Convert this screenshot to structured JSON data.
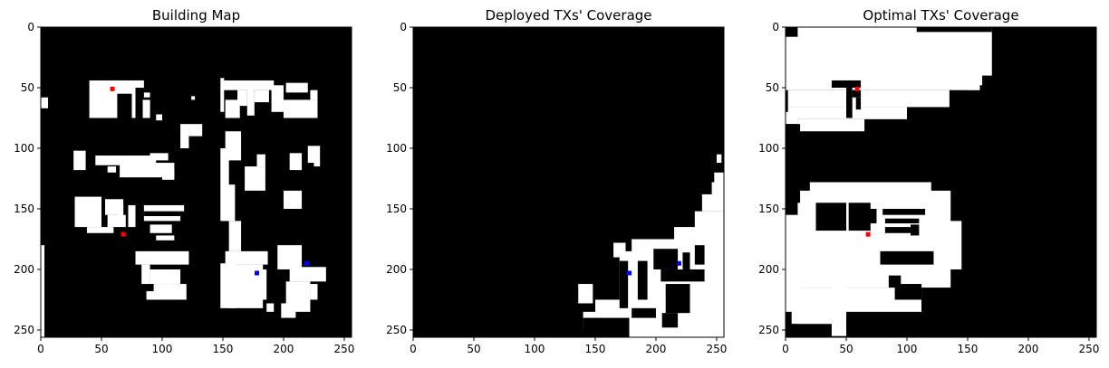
{
  "chart_data": [
    {
      "type": "heatmap",
      "title": "Building Map",
      "xlim": [
        0,
        256
      ],
      "ylim": [
        256,
        0
      ],
      "xticks": [
        0,
        50,
        100,
        150,
        200,
        250
      ],
      "yticks": [
        0,
        50,
        100,
        150,
        200,
        250
      ],
      "background_color": "#000000",
      "foreground_color": "#ffffff",
      "white_regions": [
        [
          40,
          44,
          63,
          75
        ],
        [
          60,
          44,
          75,
          55
        ],
        [
          75,
          44,
          78,
          75
        ],
        [
          78,
          44,
          85,
          50
        ],
        [
          84,
          60,
          90,
          75
        ],
        [
          85,
          54,
          90,
          58
        ],
        [
          0,
          58,
          6,
          67
        ],
        [
          86,
          62,
          90,
          69
        ],
        [
          124,
          57,
          127,
          60
        ],
        [
          115,
          80,
          122,
          100
        ],
        [
          122,
          80,
          133,
          90
        ],
        [
          95,
          72,
          100,
          77
        ],
        [
          148,
          42,
          151,
          70
        ],
        [
          150,
          44,
          192,
          52
        ],
        [
          152,
          60,
          164,
          75
        ],
        [
          162,
          52,
          170,
          65
        ],
        [
          170,
          47,
          176,
          73
        ],
        [
          176,
          52,
          188,
          62
        ],
        [
          190,
          48,
          200,
          70
        ],
        [
          202,
          46,
          220,
          54
        ],
        [
          200,
          60,
          228,
          75
        ],
        [
          222,
          52,
          228,
          60
        ],
        [
          152,
          86,
          165,
          110
        ],
        [
          148,
          100,
          155,
          160
        ],
        [
          150,
          130,
          160,
          160
        ],
        [
          155,
          160,
          165,
          185
        ],
        [
          168,
          115,
          185,
          135
        ],
        [
          178,
          105,
          185,
          115
        ],
        [
          205,
          104,
          215,
          118
        ],
        [
          220,
          98,
          230,
          112
        ],
        [
          225,
          110,
          230,
          115
        ],
        [
          27,
          102,
          37,
          118
        ],
        [
          45,
          106,
          95,
          114
        ],
        [
          65,
          112,
          110,
          124
        ],
        [
          90,
          104,
          105,
          110
        ],
        [
          100,
          118,
          110,
          126
        ],
        [
          55,
          115,
          62,
          120
        ],
        [
          28,
          140,
          50,
          165
        ],
        [
          38,
          165,
          60,
          170
        ],
        [
          53,
          142,
          68,
          155
        ],
        [
          55,
          155,
          70,
          165
        ],
        [
          63,
          147,
          68,
          160
        ],
        [
          72,
          147,
          78,
          165
        ],
        [
          85,
          147,
          118,
          152
        ],
        [
          85,
          156,
          115,
          160
        ],
        [
          90,
          163,
          108,
          170
        ],
        [
          95,
          172,
          110,
          176
        ],
        [
          200,
          135,
          215,
          150
        ],
        [
          78,
          185,
          122,
          196
        ],
        [
          83,
          196,
          90,
          212
        ],
        [
          90,
          200,
          115,
          212
        ],
        [
          93,
          212,
          120,
          225
        ],
        [
          87,
          218,
          95,
          225
        ],
        [
          148,
          195,
          160,
          232
        ],
        [
          152,
          185,
          187,
          196
        ],
        [
          155,
          196,
          183,
          232
        ],
        [
          182,
          200,
          186,
          225
        ],
        [
          195,
          180,
          215,
          200
        ],
        [
          205,
          198,
          235,
          210
        ],
        [
          202,
          210,
          222,
          235
        ],
        [
          222,
          212,
          228,
          225
        ],
        [
          198,
          228,
          210,
          240
        ],
        [
          186,
          228,
          192,
          235
        ],
        [
          0,
          180,
          3,
          256
        ]
      ],
      "tx_markers": [
        {
          "x": 59,
          "y": 51,
          "color": "#ff0000"
        },
        {
          "x": 68,
          "y": 171,
          "color": "#ff0000"
        },
        {
          "x": 178,
          "y": 203,
          "color": "#0000ff"
        },
        {
          "x": 219,
          "y": 195,
          "color": "#0000ff"
        }
      ]
    },
    {
      "type": "heatmap",
      "title": "Deployed TXs' Coverage",
      "xlim": [
        0,
        256
      ],
      "ylim": [
        256,
        0
      ],
      "xticks": [
        0,
        50,
        100,
        150,
        200,
        250
      ],
      "yticks": [
        0,
        50,
        100,
        150,
        200,
        250
      ],
      "background_color": "#000000",
      "foreground_color": "#ffffff",
      "white_regions": [
        [
          232,
          152,
          256,
          256
        ],
        [
          238,
          138,
          256,
          152
        ],
        [
          246,
          128,
          256,
          140
        ],
        [
          248,
          120,
          256,
          130
        ],
        [
          215,
          165,
          240,
          256
        ],
        [
          180,
          175,
          232,
          256
        ],
        [
          170,
          185,
          215,
          256
        ],
        [
          150,
          225,
          172,
          255
        ],
        [
          140,
          235,
          152,
          250
        ],
        [
          136,
          212,
          148,
          228
        ],
        [
          165,
          178,
          175,
          190
        ],
        [
          250,
          105,
          254,
          112
        ]
      ],
      "black_regions": [
        [
          170,
          193,
          177,
          232
        ],
        [
          185,
          193,
          193,
          225
        ],
        [
          198,
          183,
          218,
          200
        ],
        [
          204,
          200,
          240,
          210
        ],
        [
          208,
          212,
          228,
          236
        ],
        [
          222,
          186,
          228,
          205
        ],
        [
          232,
          180,
          240,
          196
        ],
        [
          205,
          236,
          218,
          248
        ],
        [
          180,
          232,
          200,
          240
        ],
        [
          140,
          240,
          178,
          256
        ]
      ],
      "tx_markers": [
        {
          "x": 178,
          "y": 203,
          "color": "#0000ff"
        },
        {
          "x": 219,
          "y": 195,
          "color": "#0000ff"
        }
      ]
    },
    {
      "type": "heatmap",
      "title": "Optimal TXs' Coverage",
      "xlim": [
        0,
        256
      ],
      "ylim": [
        256,
        0
      ],
      "xticks": [
        0,
        50,
        100,
        150,
        200,
        250
      ],
      "yticks": [
        0,
        50,
        100,
        150,
        200,
        250
      ],
      "background_color": "#000000",
      "foreground_color": "#ffffff",
      "white_regions": [
        [
          0,
          0,
          160,
          52
        ],
        [
          0,
          0,
          170,
          40
        ],
        [
          100,
          8,
          162,
          48
        ],
        [
          2,
          52,
          135,
          66
        ],
        [
          2,
          66,
          100,
          76
        ],
        [
          10,
          76,
          65,
          86
        ],
        [
          150,
          40,
          160,
          52
        ],
        [
          0,
          70,
          10,
          80
        ],
        [
          10,
          135,
          136,
          215
        ],
        [
          0,
          155,
          12,
          235
        ],
        [
          20,
          128,
          120,
          140
        ],
        [
          40,
          215,
          112,
          235
        ],
        [
          5,
          215,
          50,
          245
        ],
        [
          35,
          235,
          50,
          255
        ],
        [
          10,
          240,
          35,
          250
        ],
        [
          130,
          160,
          145,
          200
        ]
      ],
      "black_regions": [
        [
          38,
          44,
          62,
          50
        ],
        [
          50,
          44,
          55,
          75
        ],
        [
          55,
          52,
          62,
          58
        ],
        [
          58,
          58,
          62,
          68
        ],
        [
          0,
          0,
          10,
          8
        ],
        [
          108,
          0,
          170,
          4
        ],
        [
          25,
          145,
          50,
          168
        ],
        [
          52,
          145,
          70,
          168
        ],
        [
          62,
          150,
          75,
          162
        ],
        [
          80,
          150,
          115,
          155
        ],
        [
          82,
          158,
          110,
          162
        ],
        [
          82,
          165,
          105,
          170
        ],
        [
          103,
          163,
          110,
          172
        ],
        [
          78,
          185,
          122,
          196
        ],
        [
          85,
          205,
          95,
          215
        ],
        [
          90,
          212,
          112,
          225
        ],
        [
          150,
          135,
          256,
          165
        ],
        [
          140,
          215,
          256,
          256
        ],
        [
          112,
          225,
          140,
          256
        ],
        [
          50,
          240,
          112,
          256
        ],
        [
          0,
          245,
          38,
          256
        ],
        [
          0,
          80,
          12,
          145
        ],
        [
          170,
          44,
          256,
          128
        ]
      ],
      "tx_markers": [
        {
          "x": 59,
          "y": 51,
          "color": "#ff0000"
        },
        {
          "x": 68,
          "y": 171,
          "color": "#ff0000"
        }
      ]
    }
  ]
}
